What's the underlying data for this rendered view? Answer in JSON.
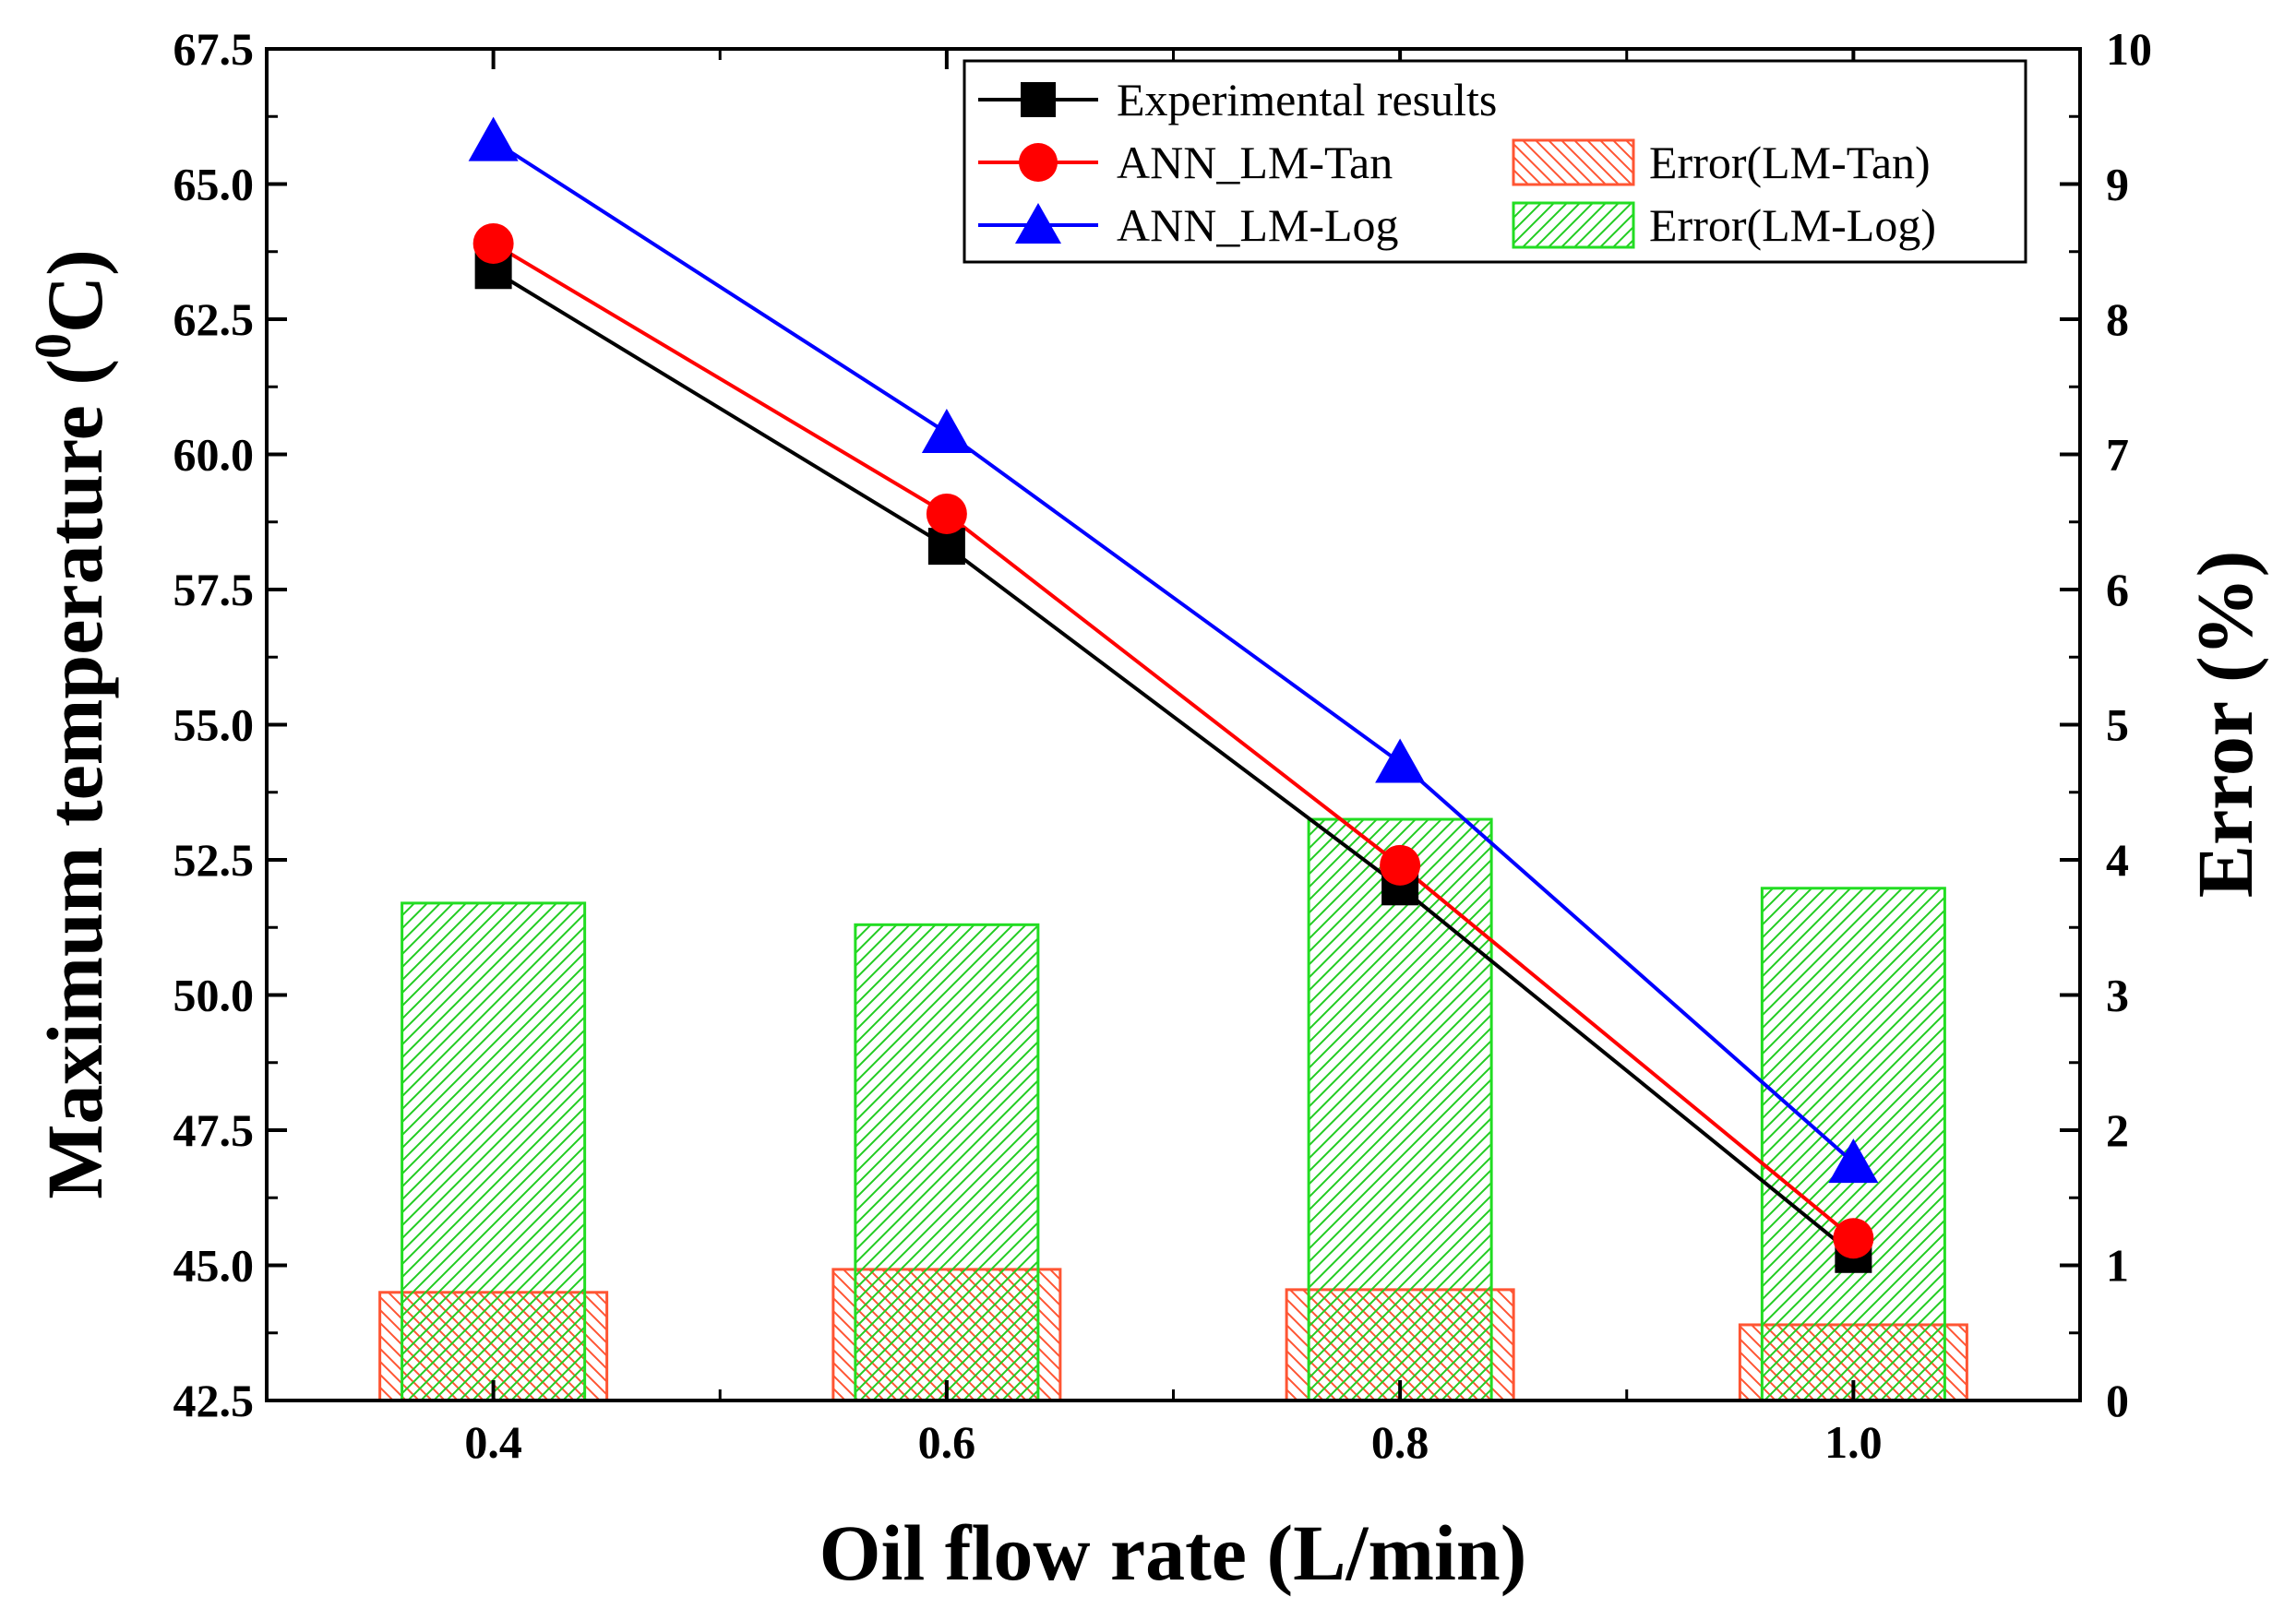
{
  "chart_data": {
    "type": "line+bar",
    "categories": [
      "0.4",
      "0.6",
      "0.8",
      "1.0"
    ],
    "x": [
      0.4,
      0.6,
      0.8,
      1.0
    ],
    "xlabel": "Oil flow rate (L/min)",
    "ylabel_left_main": "Maximum temperature (",
    "ylabel_left_sup": "0",
    "ylabel_left_end": "C)",
    "ylabel_right": "Error (%)",
    "xlim": [
      0.3,
      1.1
    ],
    "ylim_left": [
      42.5,
      67.5
    ],
    "ylim_right": [
      0,
      10
    ],
    "x_ticks": [
      "0.4",
      "0.6",
      "0.8",
      "1.0"
    ],
    "y_left_ticks": [
      "42.5",
      "45.0",
      "47.5",
      "50.0",
      "52.5",
      "55.0",
      "57.5",
      "60.0",
      "62.5",
      "65.0",
      "67.5"
    ],
    "y_right_ticks": [
      "0",
      "1",
      "2",
      "3",
      "4",
      "5",
      "6",
      "7",
      "8",
      "9",
      "10"
    ],
    "line_series": [
      {
        "name": "Experimental results",
        "color": "#000000",
        "marker": "square",
        "values": [
          63.4,
          58.3,
          52.0,
          45.2
        ]
      },
      {
        "name": "ANN_LM-Tan",
        "color": "#ff0000",
        "marker": "circle",
        "values": [
          63.9,
          58.9,
          52.4,
          45.5
        ]
      },
      {
        "name": "ANN_LM-Log",
        "color": "#0000ff",
        "marker": "triangle",
        "values": [
          65.8,
          60.4,
          54.3,
          46.9
        ]
      }
    ],
    "bar_series": [
      {
        "name": "Error(LM-Tan)",
        "color": "#ff5533",
        "hatch": "backslash",
        "axis": "right",
        "values": [
          0.8,
          0.97,
          0.82,
          0.56
        ]
      },
      {
        "name": "Error(LM-Log)",
        "color": "#22dd22",
        "hatch": "slash",
        "axis": "right",
        "values": [
          3.68,
          3.52,
          4.3,
          3.79
        ]
      }
    ],
    "legend": {
      "position": "top-right",
      "entries": [
        "Experimental results",
        "ANN_LM-Tan",
        "ANN_LM-Log",
        "Error(LM-Tan)",
        "Error(LM-Log)"
      ]
    }
  }
}
